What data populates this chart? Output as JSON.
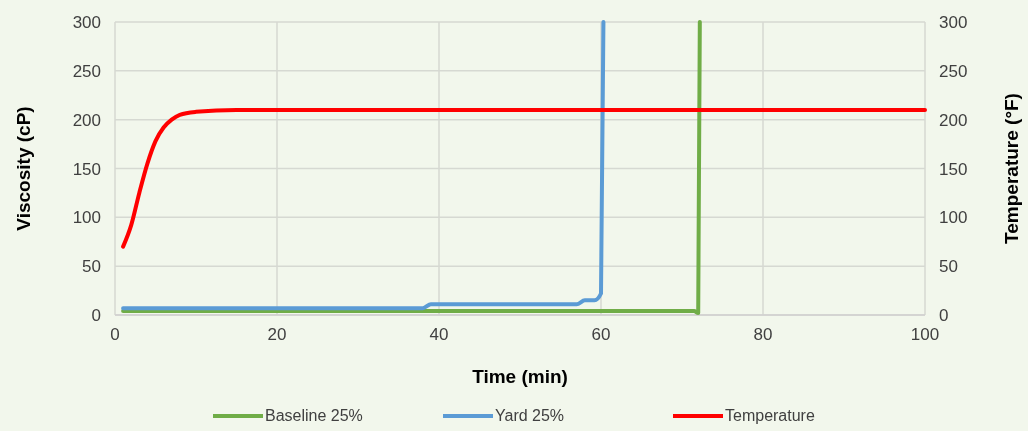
{
  "chart_data": {
    "type": "line",
    "xlabel": "Time (min)",
    "ylabel": "Viscosity (cP)",
    "y2label": "Temperature (°F)",
    "xlim": [
      0,
      100
    ],
    "xticks": [
      0,
      20,
      40,
      60,
      80,
      100
    ],
    "ylim": [
      0,
      300
    ],
    "yticks": [
      0,
      50,
      100,
      150,
      200,
      250,
      300
    ],
    "y2lim": [
      0,
      300
    ],
    "y2ticks": [
      0,
      50,
      100,
      150,
      200,
      250,
      300
    ],
    "grid": true,
    "legend": "bottom",
    "line_style": "solid",
    "marker": "none",
    "series": [
      {
        "name": "Baseline 25%",
        "color": "#70ad47",
        "x": [
          1,
          20,
          40,
          60,
          71.5,
          72,
          72.2
        ],
        "values": [
          4,
          4,
          4,
          4,
          4,
          2,
          300
        ]
      },
      {
        "name": "Yard 25%",
        "color": "#5b9bd5",
        "x": [
          1,
          20,
          38,
          39,
          57,
          58,
          59.2,
          60,
          60.3
        ],
        "values": [
          7,
          7,
          7,
          11,
          11,
          15,
          15,
          22,
          300
        ]
      },
      {
        "name": "Temperature",
        "color": "#ff0000",
        "axis": "y2",
        "x": [
          1,
          2,
          3,
          4,
          5,
          6,
          7,
          8,
          10,
          15,
          40,
          70,
          100
        ],
        "values": [
          70,
          92,
          125,
          155,
          178,
          192,
          200,
          205,
          208,
          210,
          210,
          210,
          210
        ]
      }
    ]
  }
}
